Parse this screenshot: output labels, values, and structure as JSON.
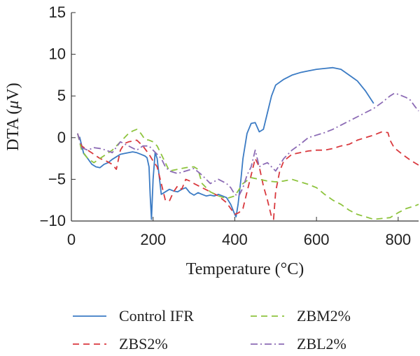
{
  "chart_data": {
    "type": "line",
    "title": "",
    "xlabel": "Temperature (°C)",
    "ylabel_prefix": "DTA (",
    "ylabel_mu": "μ",
    "ylabel_suffix": "V)",
    "xlim": [
      0,
      850
    ],
    "ylim": [
      -10,
      15
    ],
    "xticks": [
      0,
      200,
      400,
      600,
      800
    ],
    "yticks": [
      -10,
      -5,
      0,
      5,
      10,
      15
    ],
    "grid": false,
    "legend_position": "bottom",
    "series": [
      {
        "name": "Control IFR",
        "color": "#3b7bc4",
        "dash": "solid",
        "x": [
          20,
          30,
          40,
          50,
          60,
          70,
          80,
          90,
          100,
          110,
          120,
          130,
          140,
          150,
          160,
          170,
          180,
          185,
          190,
          193,
          196,
          200,
          205,
          210,
          220,
          230,
          240,
          250,
          260,
          270,
          280,
          290,
          300,
          310,
          320,
          330,
          340,
          350,
          360,
          370,
          380,
          390,
          400,
          403,
          408,
          415,
          420,
          430,
          440,
          450,
          460,
          470,
          480,
          490,
          500,
          520,
          540,
          560,
          580,
          600,
          620,
          640,
          660,
          680,
          700,
          720,
          740
        ],
        "y": [
          0.1,
          -1.9,
          -2.5,
          -3.2,
          -3.5,
          -3.6,
          -3.2,
          -3.0,
          -2.6,
          -2.3,
          -2.0,
          -1.9,
          -1.8,
          -1.7,
          -1.8,
          -2.0,
          -2.2,
          -2.4,
          -3.5,
          -7.0,
          -9.8,
          -5.0,
          -1.8,
          -2.5,
          -6.8,
          -6.5,
          -6.2,
          -6.4,
          -6.5,
          -6.2,
          -6.0,
          -6.6,
          -6.9,
          -6.6,
          -6.8,
          -7.0,
          -6.9,
          -7.0,
          -6.8,
          -7.0,
          -7.2,
          -8.0,
          -9.2,
          -9.5,
          -8.0,
          -5.0,
          -2.5,
          0.5,
          1.7,
          1.8,
          0.7,
          1.0,
          3.0,
          5.0,
          6.3,
          7.0,
          7.5,
          7.8,
          8.0,
          8.2,
          8.3,
          8.4,
          8.2,
          7.5,
          6.8,
          5.6,
          4.1
        ]
      },
      {
        "name": "ZBS2%",
        "color": "#d9393e",
        "dash": "9,6",
        "x": [
          15,
          25,
          40,
          55,
          70,
          85,
          100,
          110,
          120,
          130,
          140,
          150,
          160,
          175,
          190,
          200,
          210,
          220,
          230,
          240,
          250,
          260,
          270,
          280,
          290,
          300,
          320,
          340,
          360,
          380,
          400,
          410,
          420,
          430,
          440,
          450,
          460,
          470,
          480,
          490,
          495,
          500,
          510,
          520,
          540,
          560,
          580,
          600,
          620,
          640,
          660,
          680,
          700,
          720,
          740,
          760,
          775,
          780,
          790,
          810,
          830,
          850
        ],
        "y": [
          0.5,
          -1.0,
          -1.5,
          -2.0,
          -2.5,
          -2.8,
          -3.2,
          -3.8,
          -1.5,
          -0.7,
          -0.5,
          -0.4,
          -0.3,
          -1.0,
          -2.0,
          -2.8,
          -3.5,
          -5.5,
          -7.5,
          -7.6,
          -6.5,
          -5.8,
          -6.2,
          -5.0,
          -5.2,
          -5.5,
          -6.0,
          -6.5,
          -7.0,
          -7.8,
          -9.2,
          -9.0,
          -8.5,
          -6.5,
          -4.5,
          -2.5,
          -3.5,
          -5.8,
          -7.5,
          -9.5,
          -9.8,
          -6.5,
          -4.0,
          -2.8,
          -2.0,
          -1.8,
          -1.6,
          -1.5,
          -1.5,
          -1.3,
          -1.0,
          -0.8,
          -0.3,
          0.0,
          0.3,
          0.7,
          0.6,
          -0.3,
          -1.2,
          -2.0,
          -2.7,
          -3.3
        ]
      },
      {
        "name": "ZBM2%",
        "color": "#8ec43e",
        "dash": "9,6",
        "x": [
          15,
          25,
          40,
          55,
          70,
          85,
          100,
          120,
          140,
          150,
          160,
          170,
          180,
          190,
          200,
          210,
          220,
          230,
          240,
          260,
          280,
          300,
          310,
          320,
          340,
          360,
          380,
          400,
          420,
          440,
          460,
          480,
          500,
          520,
          540,
          560,
          580,
          600,
          620,
          640,
          660,
          680,
          700,
          720,
          740,
          760,
          780,
          800,
          820,
          840,
          850
        ],
        "y": [
          0.5,
          -1.5,
          -2.5,
          -3.0,
          -2.5,
          -2.0,
          -1.5,
          -0.5,
          0.5,
          0.8,
          1.0,
          0.5,
          -0.2,
          -0.3,
          -0.5,
          -1.0,
          -2.0,
          -3.0,
          -4.0,
          -3.8,
          -3.6,
          -3.5,
          -3.8,
          -5.5,
          -6.5,
          -7.0,
          -7.3,
          -7.0,
          -5.5,
          -4.8,
          -5.0,
          -5.2,
          -5.3,
          -5.2,
          -5.0,
          -5.3,
          -5.6,
          -6.0,
          -6.8,
          -7.5,
          -8.0,
          -8.7,
          -9.2,
          -9.5,
          -9.8,
          -9.7,
          -9.6,
          -9.0,
          -8.5,
          -8.2,
          -8.0
        ]
      },
      {
        "name": "ZBL2%",
        "color": "#8c6bb5",
        "dash": "10,4,2,4",
        "x": [
          15,
          25,
          40,
          55,
          70,
          85,
          100,
          120,
          140,
          160,
          175,
          190,
          200,
          210,
          220,
          230,
          240,
          260,
          280,
          300,
          320,
          340,
          360,
          380,
          390,
          400,
          410,
          420,
          430,
          440,
          450,
          460,
          470,
          480,
          490,
          500,
          520,
          540,
          560,
          580,
          600,
          620,
          640,
          660,
          680,
          700,
          720,
          740,
          760,
          780,
          790,
          800,
          810,
          820,
          830,
          840,
          850
        ],
        "y": [
          0.5,
          -1.2,
          -1.5,
          -1.2,
          -1.3,
          -1.5,
          -1.8,
          -0.5,
          -1.0,
          -1.5,
          -1.0,
          -1.0,
          -1.5,
          -2.0,
          -2.5,
          -3.5,
          -4.0,
          -4.3,
          -4.0,
          -3.7,
          -4.5,
          -5.5,
          -5.0,
          -5.5,
          -6.0,
          -6.8,
          -7.0,
          -6.0,
          -4.5,
          -3.5,
          -1.5,
          -3.5,
          -3.2,
          -3.0,
          -3.5,
          -4.0,
          -2.5,
          -1.5,
          -0.8,
          0.0,
          0.3,
          0.6,
          1.0,
          1.5,
          2.0,
          2.5,
          3.0,
          3.5,
          4.2,
          5.0,
          5.3,
          5.2,
          5.0,
          4.8,
          4.5,
          3.8,
          3.2
        ]
      }
    ]
  }
}
